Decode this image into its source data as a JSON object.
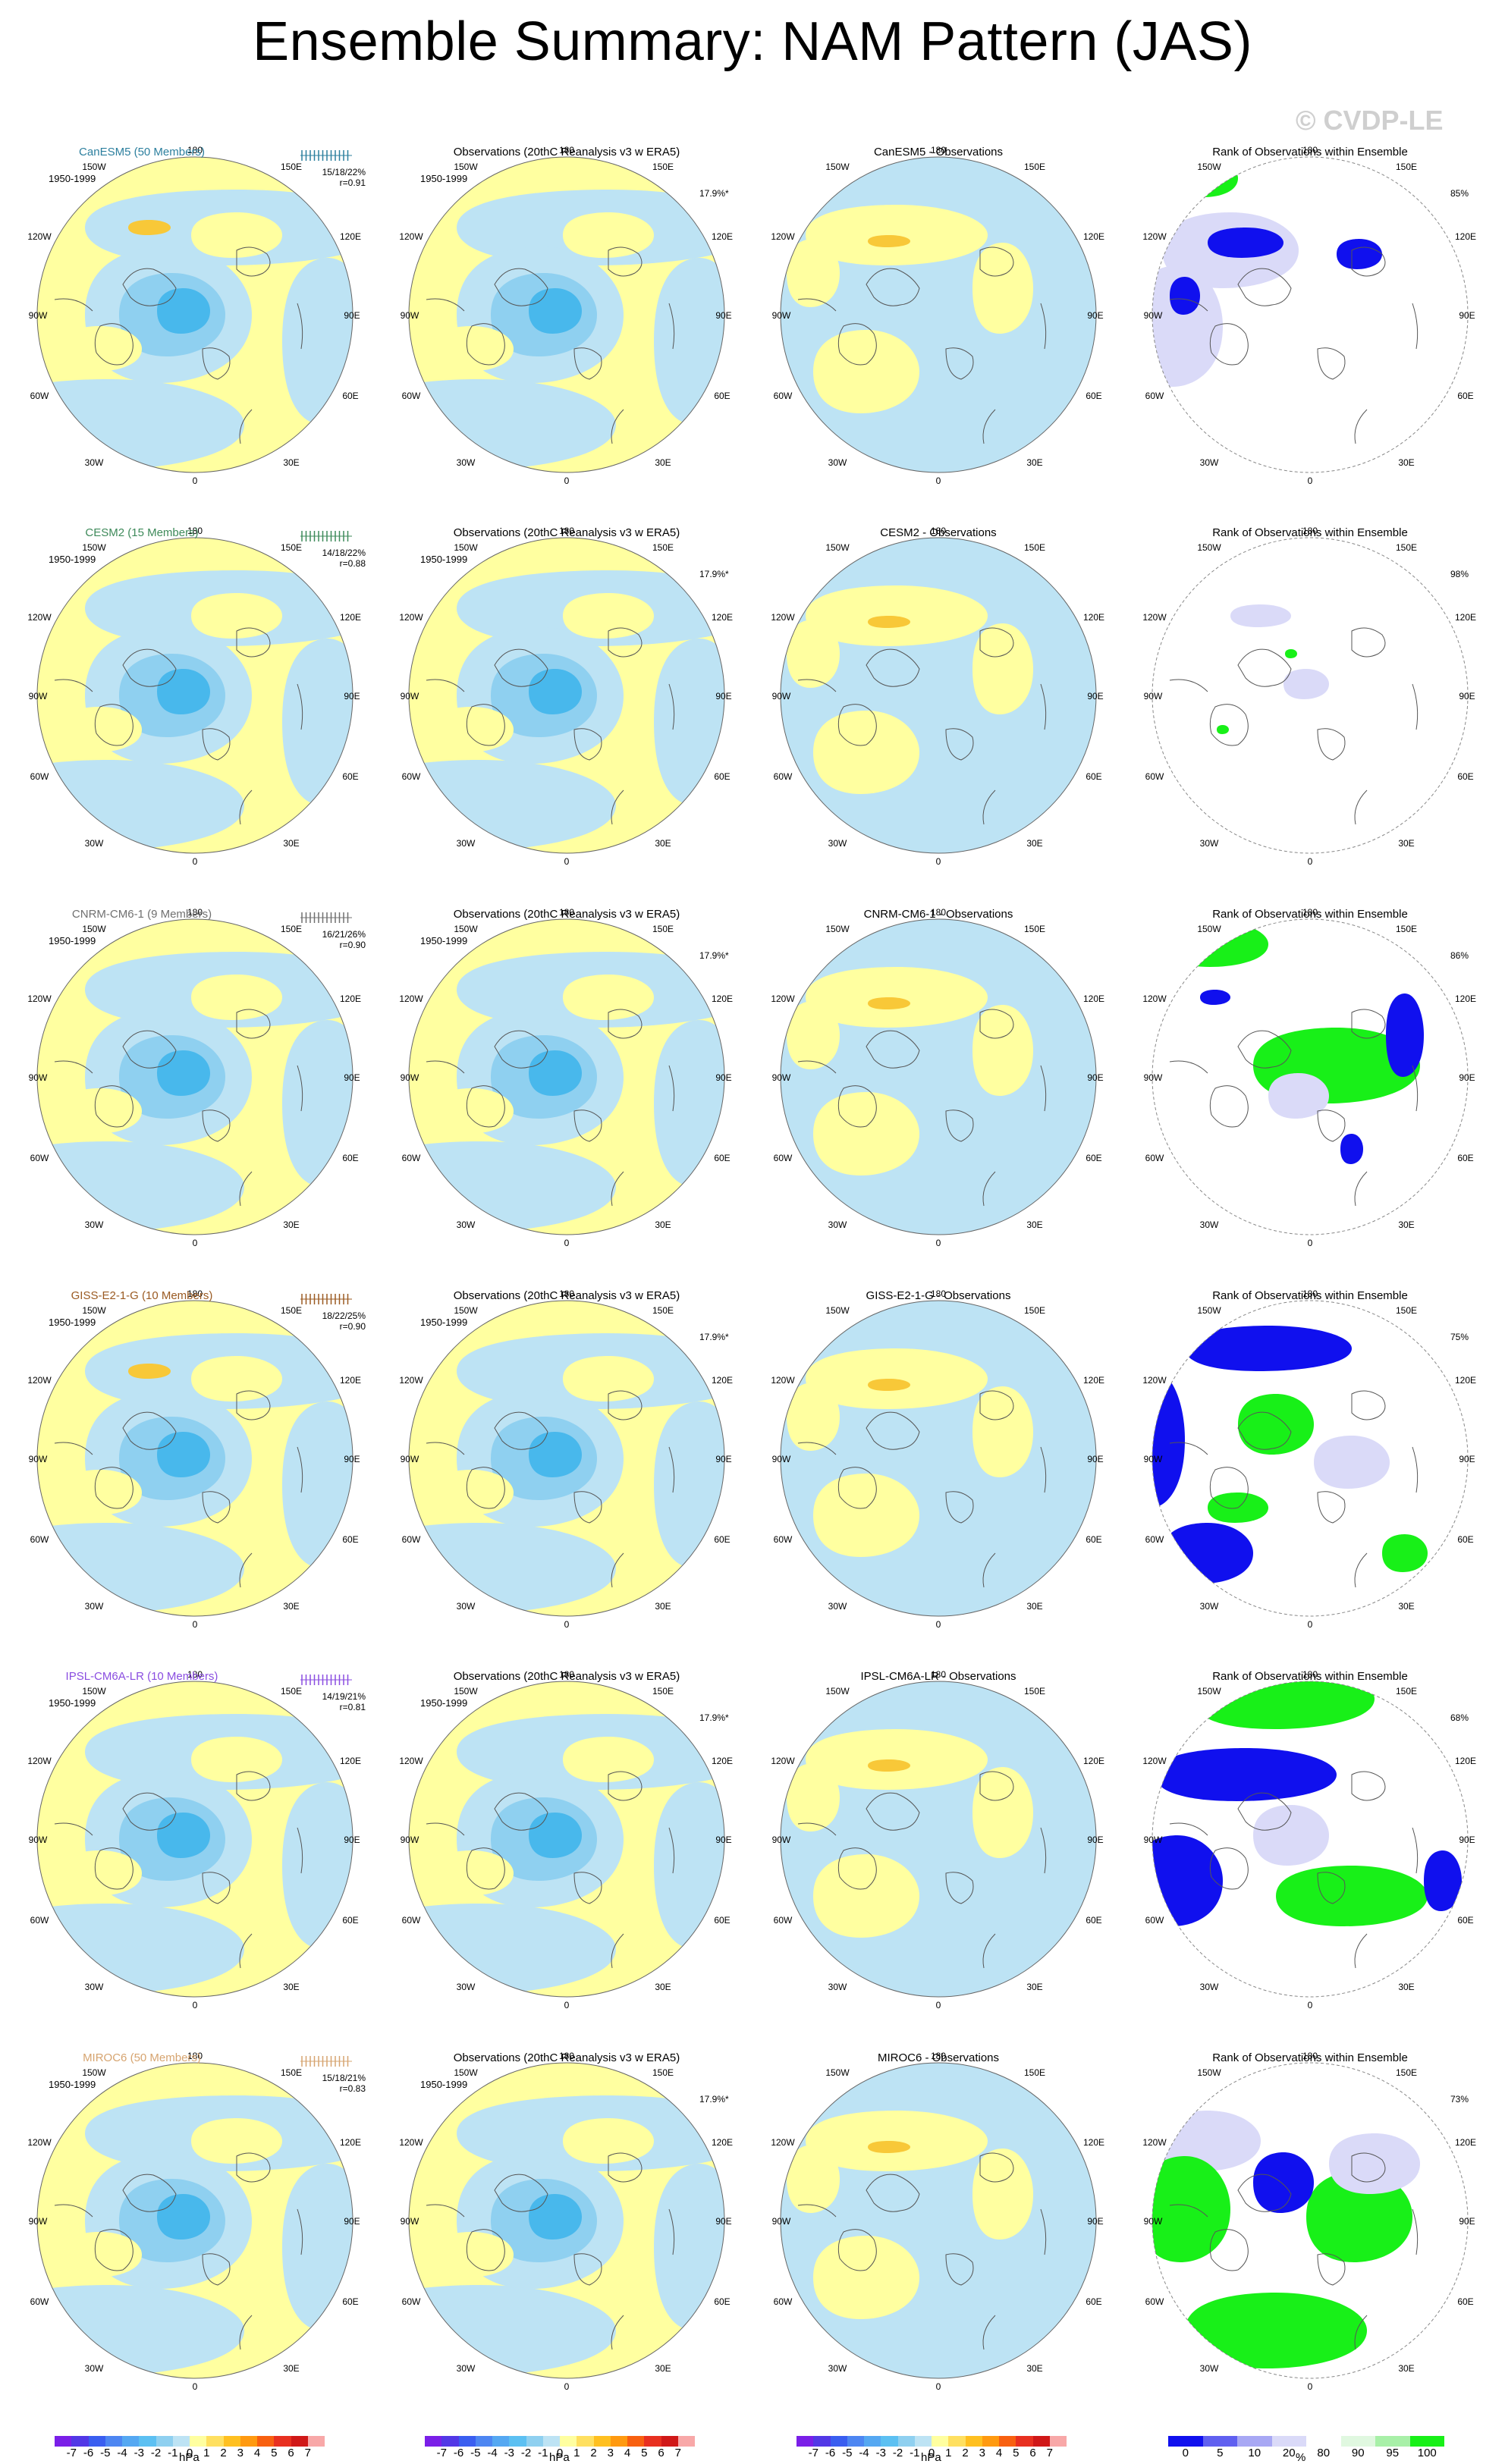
{
  "title": "Ensemble Summary: NAM Pattern (JAS)",
  "watermark": "© CVDP-LE",
  "period": "1950-1999",
  "obs_title": "Observations (20thC Reanalysis v3 w ERA5)",
  "obs_pct": "17.9%*",
  "rank_title": "Rank of Observations within Ensemble",
  "degree_labels": {
    "top": "180",
    "tl": "150W",
    "tr": "150E",
    "ul": "120W",
    "ur": "120E",
    "ml": "90W",
    "mr": "90E",
    "ll": "60W",
    "lr": "60E",
    "bl": "30W",
    "br": "30E",
    "bottom": "0"
  },
  "colors": {
    "yellow": "#ffffa0",
    "lightblue": "#bde3f4",
    "midblue": "#8fd0f0",
    "deepblue": "#48b8ec",
    "orange": "#f8c838",
    "rankblue": "#1010ee",
    "rankgreen": "#18f018",
    "ranklav": "#dadaf8"
  },
  "rows": [
    {
      "model": "CanESM5 (50 Members)",
      "model_color": "#2c7f9e",
      "stats": "15/18/22%",
      "r": "r=0.91",
      "diff_title": "CanESM5 - Observations",
      "rank_pct": "85%"
    },
    {
      "model": "CESM2 (15 Members)",
      "model_color": "#3e8a5a",
      "stats": "14/18/22%",
      "r": "r=0.88",
      "diff_title": "CESM2 - Observations",
      "rank_pct": "98%"
    },
    {
      "model": "CNRM-CM6-1 (9 Members)",
      "model_color": "#707070",
      "stats": "16/21/26%",
      "r": "r=0.90",
      "diff_title": "CNRM-CM6-1 - Observations",
      "rank_pct": "86%"
    },
    {
      "model": "GISS-E2-1-G (10 Members)",
      "model_color": "#9a5a22",
      "stats": "18/22/25%",
      "r": "r=0.90",
      "diff_title": "GISS-E2-1-G - Observations",
      "rank_pct": "75%"
    },
    {
      "model": "IPSL-CM6A-LR (10 Members)",
      "model_color": "#8a4de0",
      "stats": "14/19/21%",
      "r": "r=0.81",
      "diff_title": "IPSL-CM6A-LR - Observations",
      "rank_pct": "68%"
    },
    {
      "model": "MIROC6 (50 Members)",
      "model_color": "#d6a470",
      "stats": "15/18/21%",
      "r": "r=0.83",
      "diff_title": "MIROC6 - Observations",
      "rank_pct": "73%"
    }
  ],
  "colorbar_hpa": {
    "ticks": [
      "-7",
      "-6",
      "-5",
      "-4",
      "-3",
      "-2",
      "-1",
      "0",
      "1",
      "2",
      "3",
      "4",
      "5",
      "6",
      "7"
    ],
    "unit": "hPa",
    "colors": [
      "#7a1fe8",
      "#5238e6",
      "#3a5ef0",
      "#4d86f2",
      "#55a8f2",
      "#5cc0f2",
      "#8fd0f0",
      "#bde3f4",
      "#ffffa0",
      "#ffe060",
      "#ffc020",
      "#ff9a10",
      "#f86010",
      "#e83020",
      "#d01818",
      "#f8a8a8"
    ]
  },
  "colorbar_rank": {
    "ticks": [
      "0",
      "5",
      "10",
      "20",
      "80",
      "90",
      "95",
      "100"
    ],
    "unit": "%",
    "colors": [
      "#1010ee",
      "#6060f0",
      "#a8a8f4",
      "#dadaf8",
      "#ffffff",
      "#e0f8e0",
      "#a8f0a8",
      "#18f018"
    ]
  }
}
